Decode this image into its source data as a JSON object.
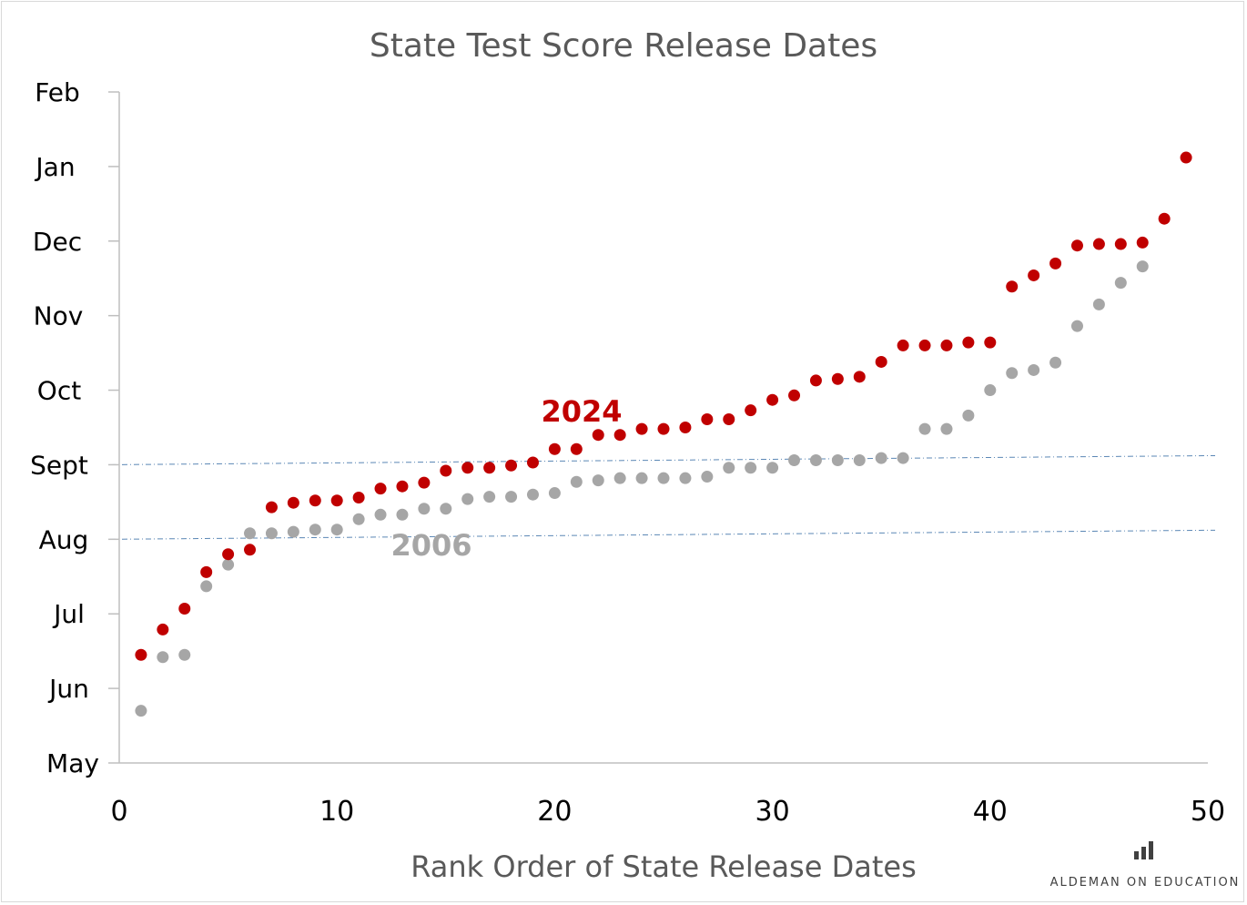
{
  "chart_data": {
    "type": "scatter",
    "title": "State Test Score Release Dates",
    "xlabel": "Rank Order of State Release Dates",
    "ylabel": "",
    "xlim": [
      0,
      50
    ],
    "x_ticks": [
      0,
      10,
      20,
      30,
      40,
      50
    ],
    "y_ticks": [
      "May",
      "Jun",
      "Jul",
      "Aug",
      "Sept",
      "Oct",
      "Nov",
      "Dec",
      "Jan",
      "Feb"
    ],
    "y_units": "month (0 = May ... 9 = Feb)",
    "ylim": [
      0,
      9
    ],
    "grid": false,
    "reference_lines_y": [
      3,
      4
    ],
    "series": [
      {
        "name": "2024",
        "color": "#c00000",
        "points": [
          [
            1,
            1.45
          ],
          [
            2,
            1.79
          ],
          [
            3,
            2.07
          ],
          [
            4,
            2.56
          ],
          [
            5,
            2.8
          ],
          [
            6,
            2.86
          ],
          [
            7,
            3.43
          ],
          [
            8,
            3.49
          ],
          [
            9,
            3.52
          ],
          [
            10,
            3.52
          ],
          [
            11,
            3.56
          ],
          [
            12,
            3.68
          ],
          [
            13,
            3.71
          ],
          [
            14,
            3.76
          ],
          [
            15,
            3.92
          ],
          [
            16,
            3.96
          ],
          [
            17,
            3.96
          ],
          [
            18,
            3.99
          ],
          [
            19,
            4.03
          ],
          [
            20,
            4.21
          ],
          [
            21,
            4.21
          ],
          [
            22,
            4.4
          ],
          [
            23,
            4.4
          ],
          [
            24,
            4.48
          ],
          [
            25,
            4.48
          ],
          [
            26,
            4.5
          ],
          [
            27,
            4.61
          ],
          [
            28,
            4.61
          ],
          [
            29,
            4.73
          ],
          [
            30,
            4.87
          ],
          [
            31,
            4.93
          ],
          [
            32,
            5.13
          ],
          [
            33,
            5.15
          ],
          [
            34,
            5.18
          ],
          [
            35,
            5.38
          ],
          [
            36,
            5.6
          ],
          [
            37,
            5.6
          ],
          [
            38,
            5.6
          ],
          [
            39,
            5.64
          ],
          [
            40,
            5.64
          ],
          [
            41,
            6.39
          ],
          [
            42,
            6.54
          ],
          [
            43,
            6.7
          ],
          [
            44,
            6.94
          ],
          [
            45,
            6.96
          ],
          [
            46,
            6.96
          ],
          [
            47,
            6.98
          ],
          [
            48,
            7.3
          ],
          [
            49,
            8.12
          ]
        ]
      },
      {
        "name": "2006",
        "color": "#a6a6a6",
        "points": [
          [
            1,
            0.7
          ],
          [
            2,
            1.42
          ],
          [
            3,
            1.45
          ],
          [
            4,
            2.37
          ],
          [
            5,
            2.66
          ],
          [
            6,
            3.08
          ],
          [
            7,
            3.08
          ],
          [
            8,
            3.1
          ],
          [
            9,
            3.13
          ],
          [
            10,
            3.13
          ],
          [
            11,
            3.27
          ],
          [
            12,
            3.33
          ],
          [
            13,
            3.33
          ],
          [
            14,
            3.41
          ],
          [
            15,
            3.41
          ],
          [
            16,
            3.54
          ],
          [
            17,
            3.57
          ],
          [
            18,
            3.57
          ],
          [
            19,
            3.6
          ],
          [
            20,
            3.62
          ],
          [
            21,
            3.77
          ],
          [
            22,
            3.79
          ],
          [
            23,
            3.82
          ],
          [
            24,
            3.82
          ],
          [
            25,
            3.82
          ],
          [
            26,
            3.82
          ],
          [
            27,
            3.84
          ],
          [
            28,
            3.96
          ],
          [
            29,
            3.96
          ],
          [
            30,
            3.96
          ],
          [
            31,
            4.06
          ],
          [
            32,
            4.06
          ],
          [
            33,
            4.06
          ],
          [
            34,
            4.06
          ],
          [
            35,
            4.09
          ],
          [
            36,
            4.09
          ],
          [
            37,
            4.48
          ],
          [
            38,
            4.48
          ],
          [
            39,
            4.66
          ],
          [
            40,
            5.0
          ],
          [
            41,
            5.23
          ],
          [
            42,
            5.27
          ],
          [
            43,
            5.37
          ],
          [
            44,
            5.86
          ],
          [
            45,
            6.15
          ],
          [
            46,
            6.44
          ],
          [
            47,
            6.66
          ]
        ]
      }
    ],
    "annotations": [
      "2024",
      "2006"
    ]
  },
  "branding": {
    "text": "ALDEMAN ON EDUCATION",
    "icon": "bar-chart-icon"
  }
}
